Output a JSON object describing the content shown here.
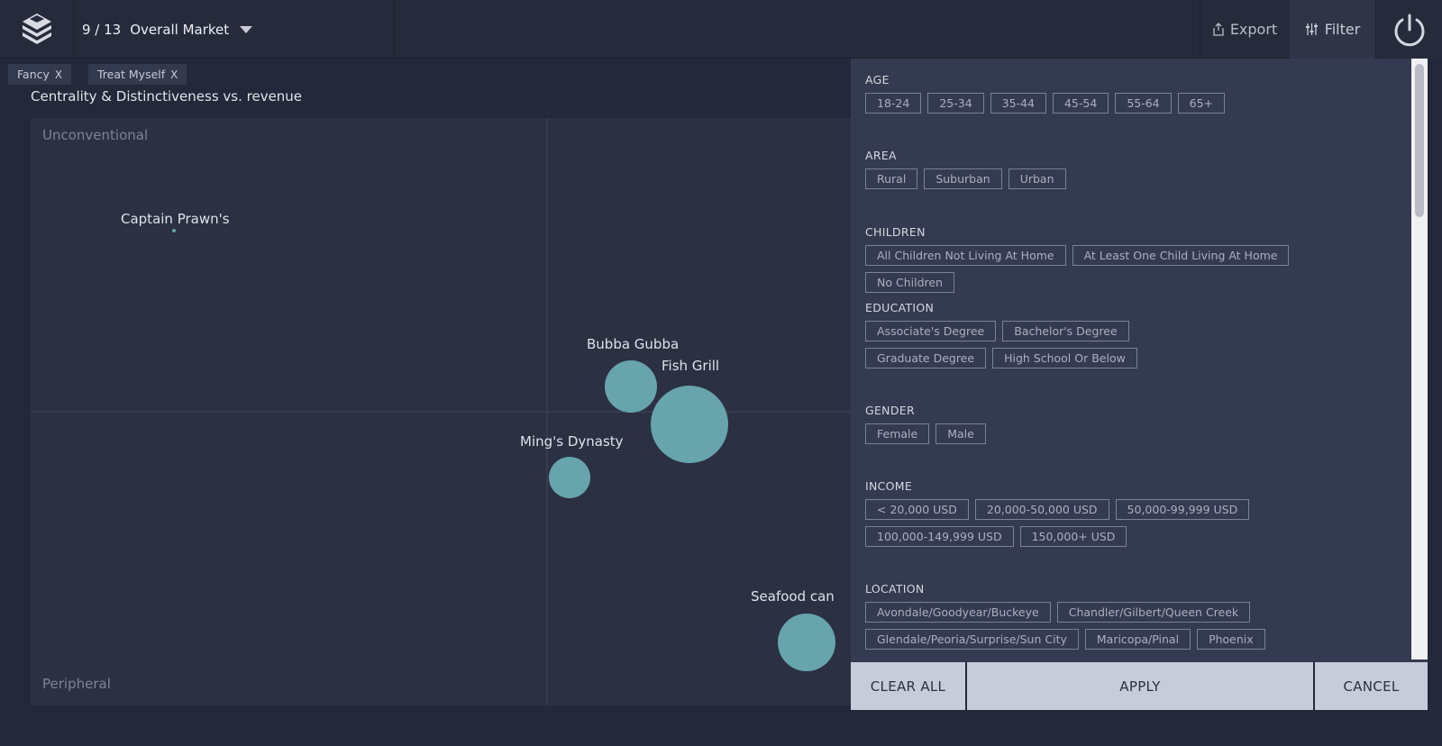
{
  "header": {
    "dataset_count": "9 / 13",
    "dataset_name": "Overall Market",
    "export_label": "Export",
    "filter_label": "Filter"
  },
  "active_filters": [
    "Fancy",
    "Treat Myself"
  ],
  "chip_remove": "X",
  "chart": {
    "title": "Centrality & Distinctiveness vs. revenue",
    "quadrant_top": "Unconventional",
    "quadrant_bottom": "Peripheral"
  },
  "chart_data": {
    "type": "scatter",
    "title": "Centrality & Distinctiveness vs. revenue",
    "points": [
      {
        "label": "Captain Prawn's",
        "size": 1
      },
      {
        "label": "Bubba Gubba",
        "size": 29
      },
      {
        "label": "Fish Grill",
        "size": 43
      },
      {
        "label": "Ming's Dynasty",
        "size": 23
      },
      {
        "label": "Seafood can",
        "size": 32
      }
    ]
  },
  "filters": {
    "age": {
      "title": "AGE",
      "options": [
        "18-24",
        "25-34",
        "35-44",
        "45-54",
        "55-64",
        "65+"
      ]
    },
    "area": {
      "title": "AREA",
      "options": [
        "Rural",
        "Suburban",
        "Urban"
      ]
    },
    "children": {
      "title": "CHILDREN",
      "options": [
        "All Children Not Living At Home",
        "At Least One Child Living At Home",
        "No Children"
      ]
    },
    "education": {
      "title": "EDUCATION",
      "options": [
        "Associate's Degree",
        "Bachelor's Degree",
        "Graduate Degree",
        "High School Or Below"
      ]
    },
    "gender": {
      "title": "GENDER",
      "options": [
        "Female",
        "Male"
      ]
    },
    "income": {
      "title": "INCOME",
      "options": [
        "< 20,000 USD",
        "20,000-50,000 USD",
        "50,000-99,999 USD",
        "100,000-149,999 USD",
        "150,000+ USD"
      ]
    },
    "location": {
      "title": "LOCATION",
      "options": [
        "Avondale/Goodyear/Buckeye",
        "Chandler/Gilbert/Queen Creek",
        "Glendale/Peoria/Surprise/Sun City",
        "Maricopa/Pinal",
        "Phoenix"
      ]
    }
  },
  "footer": {
    "clear_label": "CLEAR ALL",
    "apply_label": "APPLY",
    "cancel_label": "CANCEL"
  },
  "colors": {
    "bubble": "#67a4ab",
    "background": "#23283a",
    "panel": "#343a4f"
  }
}
